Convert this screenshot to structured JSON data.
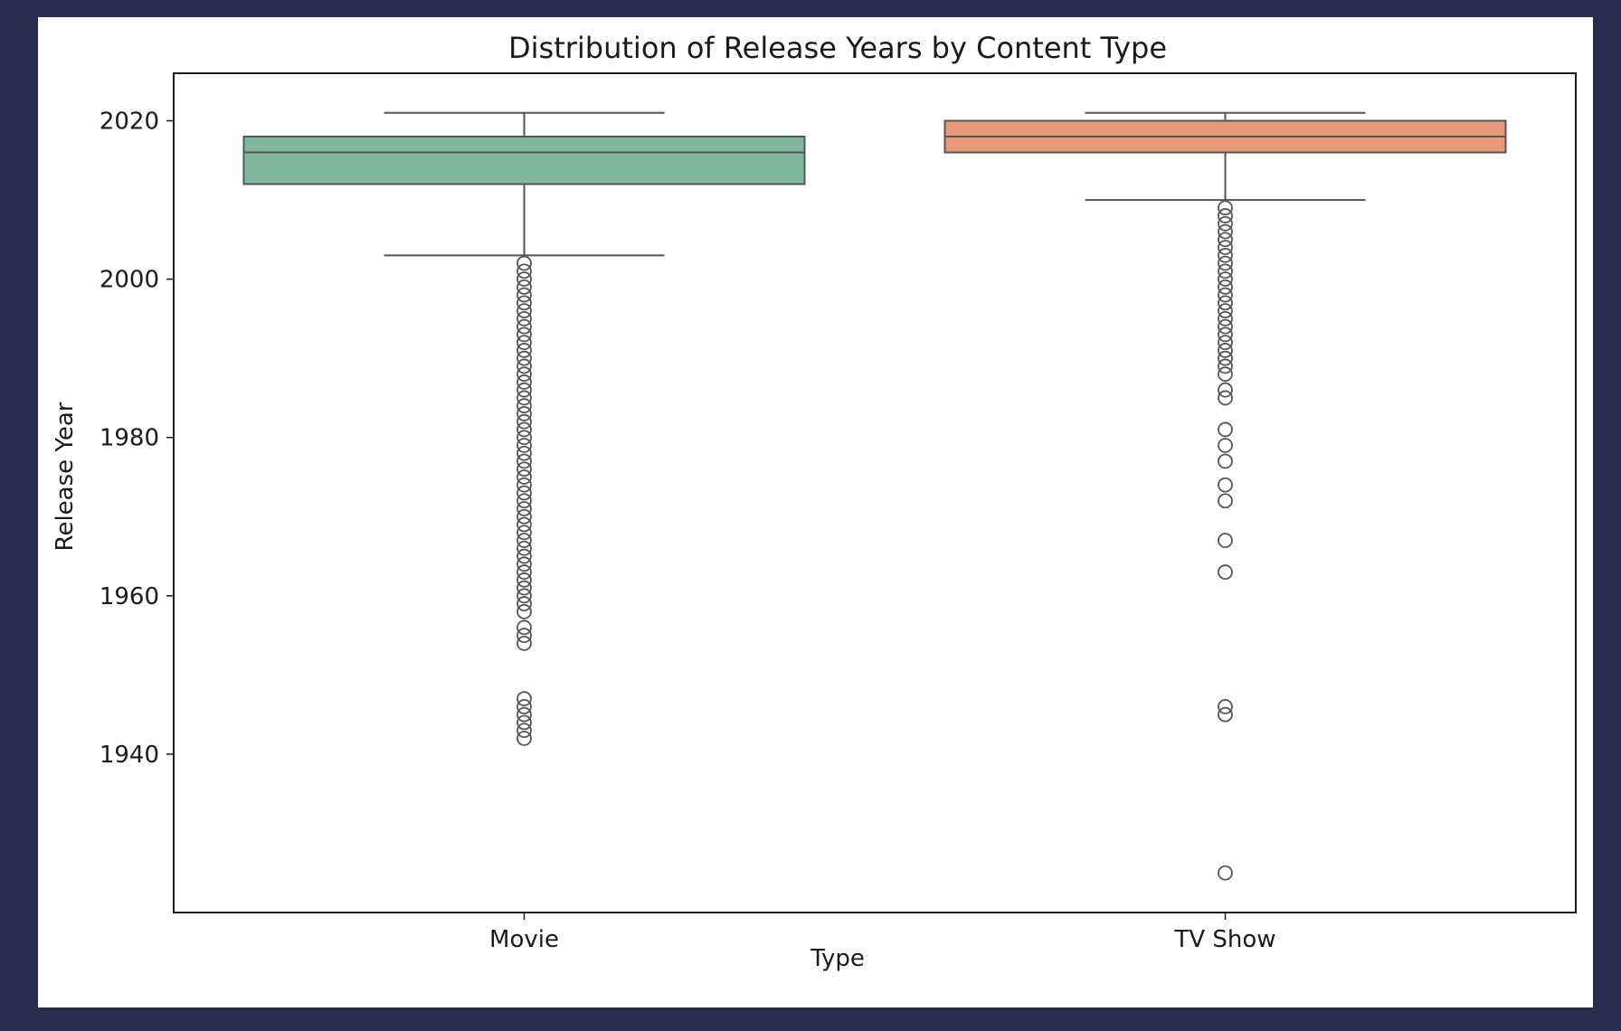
{
  "chart_data": {
    "type": "box",
    "title": "Distribution of Release Years by Content Type",
    "xlabel": "Type",
    "ylabel": "Release Year",
    "ylim": [
      1920,
      2026
    ],
    "yticks": [
      1940,
      1960,
      1980,
      2000,
      2020
    ],
    "grid": false,
    "colors": {
      "axis": "#1a1a1a",
      "lines": "#555555"
    },
    "categories": [
      "Movie",
      "TV Show"
    ],
    "series": [
      {
        "category": "Movie",
        "color": "#82b8a2",
        "whisker_low": 2003,
        "q1": 2012,
        "median": 2016,
        "q3": 2018,
        "whisker_high": 2021,
        "outliers": [
          2002,
          2001,
          2000,
          1999,
          1998,
          1997,
          1996,
          1995,
          1994,
          1993,
          1992,
          1991,
          1990,
          1989,
          1988,
          1987,
          1986,
          1985,
          1984,
          1983,
          1982,
          1981,
          1980,
          1979,
          1978,
          1977,
          1976,
          1975,
          1974,
          1973,
          1972,
          1971,
          1970,
          1969,
          1968,
          1967,
          1966,
          1965,
          1964,
          1963,
          1962,
          1961,
          1960,
          1959,
          1958,
          1956,
          1955,
          1954,
          1947,
          1946,
          1945,
          1944,
          1943,
          1942
        ]
      },
      {
        "category": "TV Show",
        "color": "#e89a78",
        "whisker_low": 2010,
        "q1": 2016,
        "median": 2018,
        "q3": 2020,
        "whisker_high": 2021,
        "outliers": [
          2009,
          2008,
          2007,
          2006,
          2005,
          2004,
          2003,
          2002,
          2001,
          2000,
          1999,
          1998,
          1997,
          1996,
          1995,
          1994,
          1993,
          1992,
          1991,
          1990,
          1989,
          1988,
          1986,
          1985,
          1981,
          1979,
          1977,
          1974,
          1972,
          1967,
          1963,
          1946,
          1945,
          1925
        ]
      }
    ]
  }
}
